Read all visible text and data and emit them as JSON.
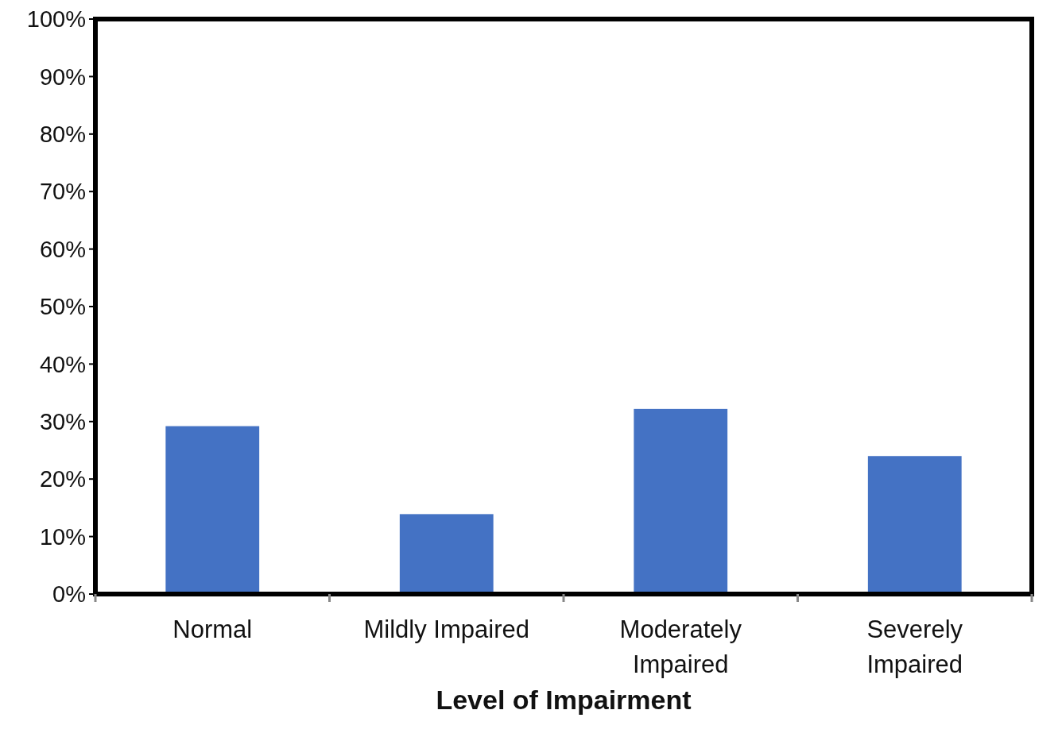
{
  "chart_data": {
    "type": "bar",
    "xlabel": "Level of Impairment",
    "categories": [
      "Normal",
      "Mildly Impaired",
      "Moderately Impaired",
      "Severely Impaired"
    ],
    "values": [
      29.2,
      13.9,
      32.2,
      24.0
    ],
    "color": "#4472c4",
    "ylim": [
      0,
      100
    ],
    "yticks": [
      {
        "value": 0,
        "label": "0%"
      },
      {
        "value": 10,
        "label": "10%"
      },
      {
        "value": 20,
        "label": "20%"
      },
      {
        "value": 30,
        "label": "30%"
      },
      {
        "value": 40,
        "label": "40%"
      },
      {
        "value": 50,
        "label": "50%"
      },
      {
        "value": 60,
        "label": "60%"
      },
      {
        "value": 70,
        "label": "70%"
      },
      {
        "value": 80,
        "label": "80%"
      },
      {
        "value": 90,
        "label": "90%"
      },
      {
        "value": 100,
        "label": "100%"
      }
    ],
    "grid": false
  }
}
